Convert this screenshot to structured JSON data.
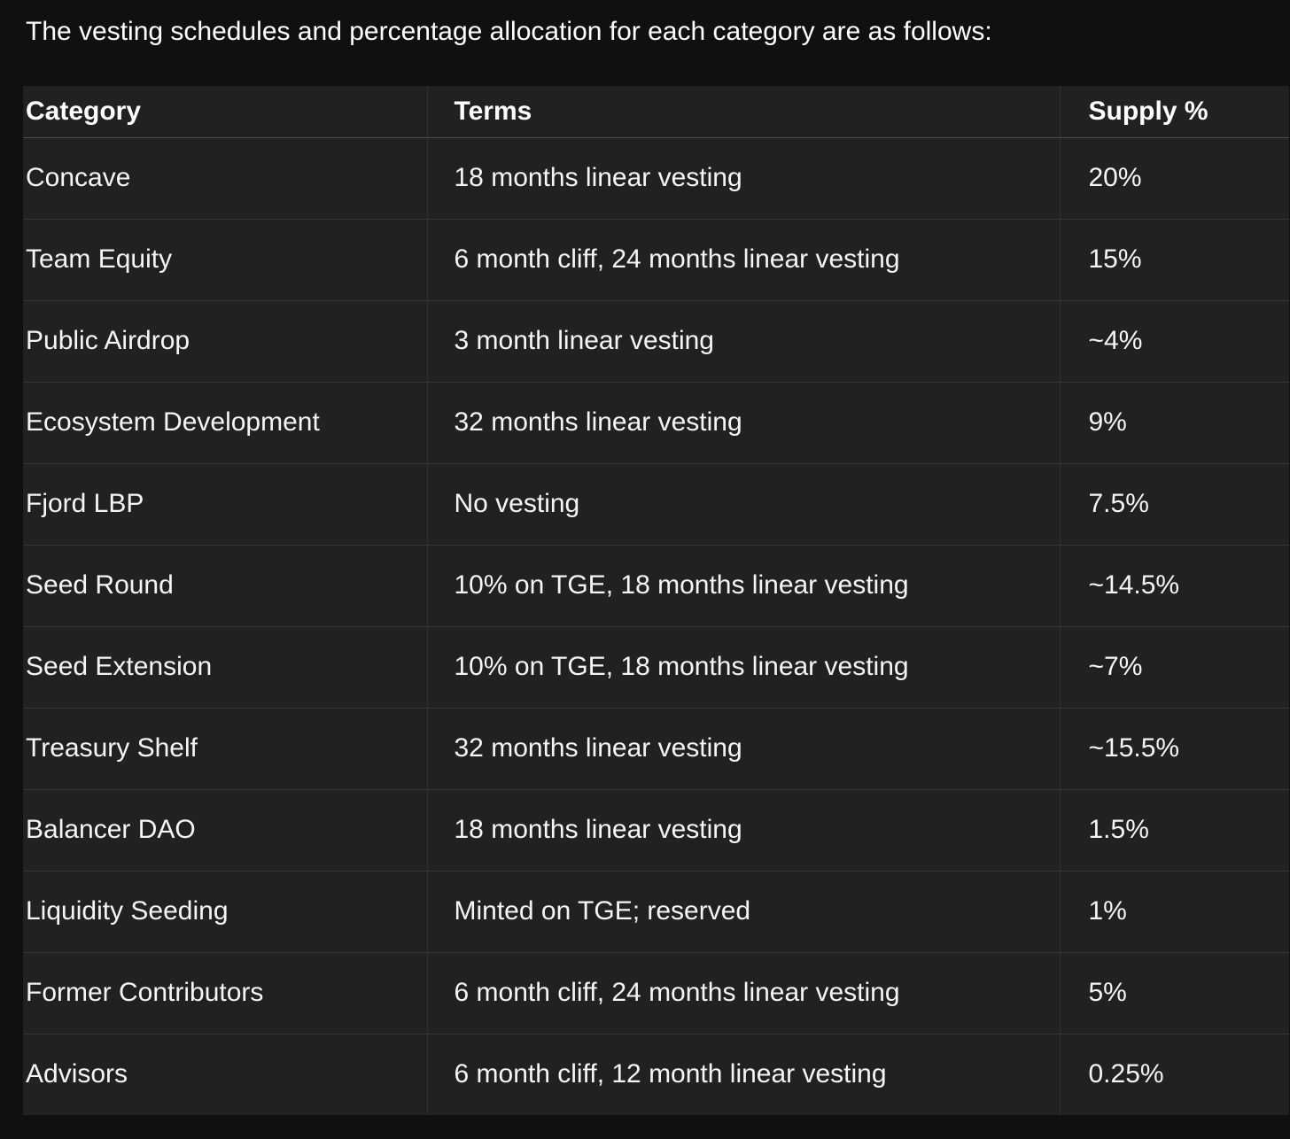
{
  "page": {
    "title": "The vesting schedules and percentage allocation for each category are as follows:"
  },
  "table": {
    "columns": [
      "Category",
      "Terms",
      "Supply %"
    ],
    "rows": [
      {
        "category": "Concave",
        "terms": "18 months linear vesting",
        "supply": "20%"
      },
      {
        "category": "Team Equity",
        "terms": "6 month cliff, 24 months linear vesting",
        "supply": "15%"
      },
      {
        "category": "Public Airdrop",
        "terms": "3 month linear vesting",
        "supply": "~4%"
      },
      {
        "category": "Ecosystem Development",
        "terms": "32 months linear vesting",
        "supply": "9%"
      },
      {
        "category": "Fjord LBP",
        "terms": "No vesting",
        "supply": "7.5%"
      },
      {
        "category": "Seed Round",
        "terms": "10% on TGE, 18 months linear vesting",
        "supply": "~14.5%"
      },
      {
        "category": "Seed Extension",
        "terms": "10% on TGE, 18 months linear vesting",
        "supply": "~7%"
      },
      {
        "category": "Treasury Shelf",
        "terms": "32 months linear vesting",
        "supply": "~15.5%"
      },
      {
        "category": "Balancer DAO",
        "terms": "18 months linear vesting",
        "supply": "1.5%"
      },
      {
        "category": "Liquidity Seeding",
        "terms": "Minted on TGE; reserved",
        "supply": "1%"
      },
      {
        "category": "Former Contributors",
        "terms": "6 month cliff, 24 months linear vesting",
        "supply": "5%"
      },
      {
        "category": "Advisors",
        "terms": "6 month cliff, 12 month linear vesting",
        "supply": "0.25%"
      }
    ]
  },
  "theme": {
    "page_bg": "#101010",
    "table_bg": "#212121",
    "row_border": "#363636",
    "col_border": "#313131",
    "header_border": "#4d4d4d",
    "text": "#f5f5f5",
    "heading_text": "#ffffff"
  }
}
